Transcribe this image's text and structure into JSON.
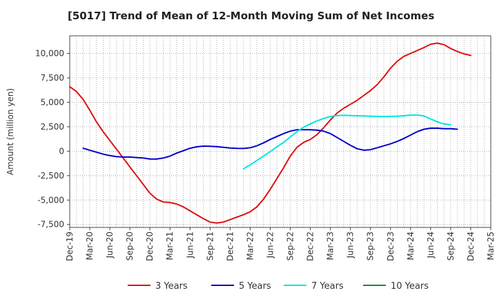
{
  "chart_data": {
    "type": "line",
    "title": "[5017]  Trend of Mean of 12-Month Moving Sum of Net Incomes",
    "ylabel": "Amount (million yen)",
    "xlabel": "",
    "ylim": [
      -7800,
      11800
    ],
    "yticks": [
      -7500,
      -5000,
      -2500,
      0,
      2500,
      5000,
      7500,
      10000
    ],
    "ytick_labels": [
      "-7,500",
      "-5,000",
      "-2,500",
      "0",
      "2,500",
      "5,000",
      "7,500",
      "10,000"
    ],
    "x_start": "2019-12",
    "x_end": "2025-03",
    "xtick_labels": [
      "Dec-19",
      "Mar-20",
      "Jun-20",
      "Sep-20",
      "Dec-20",
      "Mar-21",
      "Jun-21",
      "Sep-21",
      "Dec-21",
      "Mar-22",
      "Jun-22",
      "Sep-22",
      "Dec-22",
      "Mar-23",
      "Jun-23",
      "Sep-23",
      "Dec-23",
      "Mar-24",
      "Jun-24",
      "Sep-24",
      "Dec-24",
      "Mar-25"
    ],
    "grid": true,
    "legend_position": "bottom",
    "series": [
      {
        "name": "3 Years",
        "color": "#dd1111",
        "start": "2019-12",
        "values": [
          6600,
          6100,
          5300,
          4200,
          3000,
          2000,
          1100,
          200,
          -700,
          -1600,
          -2500,
          -3400,
          -4300,
          -4900,
          -5200,
          -5250,
          -5400,
          -5700,
          -6100,
          -6500,
          -6900,
          -7250,
          -7350,
          -7250,
          -7000,
          -6750,
          -6500,
          -6200,
          -5700,
          -4900,
          -3900,
          -2800,
          -1700,
          -500,
          400,
          900,
          1200,
          1700,
          2400,
          3200,
          3900,
          4400,
          4800,
          5200,
          5700,
          6200,
          6800,
          7600,
          8500,
          9200,
          9700,
          10000,
          10300,
          10600,
          10950,
          11050,
          10900,
          10500,
          10200,
          9950,
          9800
        ]
      },
      {
        "name": "5 Years",
        "color": "#0000cc",
        "start": "2020-02",
        "values": [
          300,
          100,
          -100,
          -300,
          -450,
          -550,
          -600,
          -600,
          -650,
          -700,
          -800,
          -800,
          -700,
          -500,
          -200,
          50,
          300,
          450,
          520,
          500,
          460,
          400,
          330,
          290,
          280,
          350,
          550,
          850,
          1200,
          1500,
          1800,
          2050,
          2200,
          2200,
          2200,
          2150,
          2050,
          1800,
          1400,
          1000,
          600,
          250,
          100,
          150,
          350,
          550,
          750,
          1000,
          1300,
          1650,
          2000,
          2250,
          2350,
          2350,
          2300,
          2300,
          2250
        ]
      },
      {
        "name": "7 Years",
        "color": "#00e5e5",
        "start": "2022-02",
        "values": [
          -1800,
          -1400,
          -950,
          -500,
          -50,
          450,
          900,
          1450,
          2000,
          2450,
          2800,
          3100,
          3350,
          3550,
          3650,
          3680,
          3650,
          3620,
          3600,
          3580,
          3560,
          3550,
          3560,
          3580,
          3620,
          3700,
          3700,
          3600,
          3300,
          3000,
          2800,
          2700
        ]
      },
      {
        "name": "10 Years",
        "color": "#228822",
        "start": "2019-12",
        "values": []
      }
    ]
  }
}
